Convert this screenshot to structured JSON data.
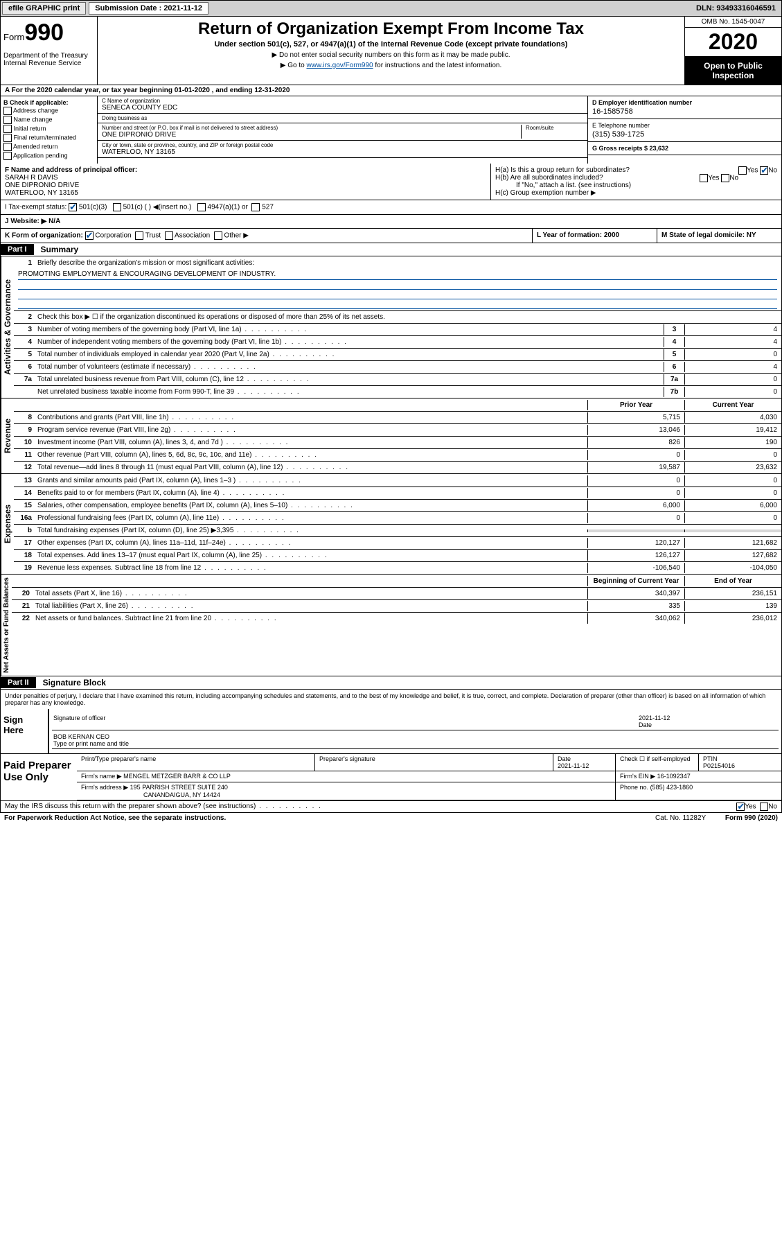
{
  "topbar": {
    "efile_btn": "efile GRAPHIC print",
    "sub_label": "Submission Date : 2021-11-12",
    "dln": "DLN: 93493316046591"
  },
  "header": {
    "form_word": "Form",
    "form_num": "990",
    "dept": "Department of the Treasury\nInternal Revenue Service",
    "title": "Return of Organization Exempt From Income Tax",
    "subtitle": "Under section 501(c), 527, or 4947(a)(1) of the Internal Revenue Code (except private foundations)",
    "note1": "▶ Do not enter social security numbers on this form as it may be made public.",
    "note2_pre": "▶ Go to ",
    "note2_link": "www.irs.gov/Form990",
    "note2_post": " for instructions and the latest information.",
    "omb": "OMB No. 1545-0047",
    "year": "2020",
    "open": "Open to Public Inspection"
  },
  "rowA": "A For the 2020 calendar year, or tax year beginning 01-01-2020    , and ending 12-31-2020",
  "colB": {
    "hdr": "B Check if applicable:",
    "opts": [
      "Address change",
      "Name change",
      "Initial return",
      "Final return/terminated",
      "Amended return",
      "Application pending"
    ]
  },
  "colC": {
    "name_lbl": "C Name of organization",
    "name": "SENECA COUNTY EDC",
    "dba_lbl": "Doing business as",
    "dba": "",
    "addr_lbl": "Number and street (or P.O. box if mail is not delivered to street address)",
    "room_lbl": "Room/suite",
    "addr": "ONE DIPRONIO DRIVE",
    "city_lbl": "City or town, state or province, country, and ZIP or foreign postal code",
    "city": "WATERLOO, NY  13165"
  },
  "colD": {
    "ein_lbl": "D Employer identification number",
    "ein": "16-1585758",
    "phone_lbl": "E Telephone number",
    "phone": "(315) 539-1725",
    "gross_lbl": "G Gross receipts $ 23,632"
  },
  "rowF": {
    "lbl": "F  Name and address of principal officer:",
    "name": "SARAH R DAVIS",
    "addr1": "ONE DIPRONIO DRIVE",
    "addr2": "WATERLOO, NY  13165"
  },
  "rowH": {
    "ha": "H(a)  Is this a group return for subordinates?",
    "hb": "H(b)  Are all subordinates included?",
    "hb_note": "If \"No,\" attach a list. (see instructions)",
    "hc": "H(c)  Group exemption number ▶"
  },
  "rowI": {
    "lbl": "I   Tax-exempt status:",
    "c501c3": "501(c)(3)",
    "c501c": "501(c) (  ) ◀(insert no.)",
    "c4947": "4947(a)(1) or",
    "c527": "527"
  },
  "rowJ": "J   Website: ▶  N/A",
  "rowK": {
    "lbl": "K Form of organization:",
    "corp": "Corporation",
    "trust": "Trust",
    "assoc": "Association",
    "other": "Other ▶"
  },
  "rowL": "L Year of formation: 2000",
  "rowM": "M State of legal domicile: NY",
  "part1": {
    "hdr": "Part I",
    "title": "Summary",
    "vert1": "Activities & Governance",
    "vert2": "Revenue",
    "vert3": "Expenses",
    "vert4": "Net Assets or Fund Balances",
    "q1": "Briefly describe the organization's mission or most significant activities:",
    "mission": "PROMOTING EMPLOYMENT & ENCOURAGING DEVELOPMENT OF INDUSTRY.",
    "q2": "Check this box ▶ ☐  if the organization discontinued its operations or disposed of more than 25% of its net assets.",
    "rows_gov": [
      {
        "n": "3",
        "d": "Number of voting members of the governing body (Part VI, line 1a)",
        "nc": "3",
        "v": "4"
      },
      {
        "n": "4",
        "d": "Number of independent voting members of the governing body (Part VI, line 1b)",
        "nc": "4",
        "v": "4"
      },
      {
        "n": "5",
        "d": "Total number of individuals employed in calendar year 2020 (Part V, line 2a)",
        "nc": "5",
        "v": "0"
      },
      {
        "n": "6",
        "d": "Total number of volunteers (estimate if necessary)",
        "nc": "6",
        "v": "4"
      },
      {
        "n": "7a",
        "d": "Total unrelated business revenue from Part VIII, column (C), line 12",
        "nc": "7a",
        "v": "0"
      },
      {
        "n": "",
        "d": "Net unrelated business taxable income from Form 990-T, line 39",
        "nc": "7b",
        "v": "0"
      }
    ],
    "prior_hdr": "Prior Year",
    "curr_hdr": "Current Year",
    "rows_rev": [
      {
        "n": "8",
        "d": "Contributions and grants (Part VIII, line 1h)",
        "p": "5,715",
        "c": "4,030"
      },
      {
        "n": "9",
        "d": "Program service revenue (Part VIII, line 2g)",
        "p": "13,046",
        "c": "19,412"
      },
      {
        "n": "10",
        "d": "Investment income (Part VIII, column (A), lines 3, 4, and 7d )",
        "p": "826",
        "c": "190"
      },
      {
        "n": "11",
        "d": "Other revenue (Part VIII, column (A), lines 5, 6d, 8c, 9c, 10c, and 11e)",
        "p": "0",
        "c": "0"
      },
      {
        "n": "12",
        "d": "Total revenue—add lines 8 through 11 (must equal Part VIII, column (A), line 12)",
        "p": "19,587",
        "c": "23,632"
      }
    ],
    "rows_exp": [
      {
        "n": "13",
        "d": "Grants and similar amounts paid (Part IX, column (A), lines 1–3 )",
        "p": "0",
        "c": "0"
      },
      {
        "n": "14",
        "d": "Benefits paid to or for members (Part IX, column (A), line 4)",
        "p": "0",
        "c": "0"
      },
      {
        "n": "15",
        "d": "Salaries, other compensation, employee benefits (Part IX, column (A), lines 5–10)",
        "p": "6,000",
        "c": "6,000"
      },
      {
        "n": "16a",
        "d": "Professional fundraising fees (Part IX, column (A), line 11e)",
        "p": "0",
        "c": "0"
      },
      {
        "n": "b",
        "d": "Total fundraising expenses (Part IX, column (D), line 25) ▶3,395",
        "p": "",
        "c": ""
      },
      {
        "n": "17",
        "d": "Other expenses (Part IX, column (A), lines 11a–11d, 11f–24e)",
        "p": "120,127",
        "c": "121,682"
      },
      {
        "n": "18",
        "d": "Total expenses. Add lines 13–17 (must equal Part IX, column (A), line 25)",
        "p": "126,127",
        "c": "127,682"
      },
      {
        "n": "19",
        "d": "Revenue less expenses. Subtract line 18 from line 12",
        "p": "-106,540",
        "c": "-104,050"
      }
    ],
    "beg_hdr": "Beginning of Current Year",
    "end_hdr": "End of Year",
    "rows_net": [
      {
        "n": "20",
        "d": "Total assets (Part X, line 16)",
        "p": "340,397",
        "c": "236,151"
      },
      {
        "n": "21",
        "d": "Total liabilities (Part X, line 26)",
        "p": "335",
        "c": "139"
      },
      {
        "n": "22",
        "d": "Net assets or fund balances. Subtract line 21 from line 20",
        "p": "340,062",
        "c": "236,012"
      }
    ]
  },
  "part2": {
    "hdr": "Part II",
    "title": "Signature Block",
    "decl": "Under penalties of perjury, I declare that I have examined this return, including accompanying schedules and statements, and to the best of my knowledge and belief, it is true, correct, and complete. Declaration of preparer (other than officer) is based on all information of which preparer has any knowledge.",
    "sign_here": "Sign Here",
    "sig_officer": "Signature of officer",
    "sig_date": "2021-11-12",
    "date_lbl": "Date",
    "officer_name": "BOB KERNAN CEO",
    "type_name": "Type or print name and title",
    "paid": "Paid Preparer Use Only",
    "prep_name_lbl": "Print/Type preparer's name",
    "prep_sig_lbl": "Preparer's signature",
    "prep_date_lbl": "Date",
    "prep_date": "2021-11-12",
    "prep_check": "Check ☐ if self-employed",
    "ptin_lbl": "PTIN",
    "ptin": "P02154016",
    "firm_name_lbl": "Firm's name     ▶",
    "firm_name": "MENGEL METZGER BARR & CO LLP",
    "firm_ein_lbl": "Firm's EIN ▶",
    "firm_ein": "16-1092347",
    "firm_addr_lbl": "Firm's address ▶",
    "firm_addr": "195 PARRISH STREET SUITE 240",
    "firm_city": "CANANDAIGUA, NY  14424",
    "firm_phone_lbl": "Phone no.",
    "firm_phone": "(585) 423-1860"
  },
  "footer": {
    "discuss": "May the IRS discuss this return with the preparer shown above? (see instructions)",
    "yes": "Yes",
    "no": "No",
    "paperwork": "For Paperwork Reduction Act Notice, see the separate instructions.",
    "catno": "Cat. No. 11282Y",
    "formno": "Form 990 (2020)"
  }
}
